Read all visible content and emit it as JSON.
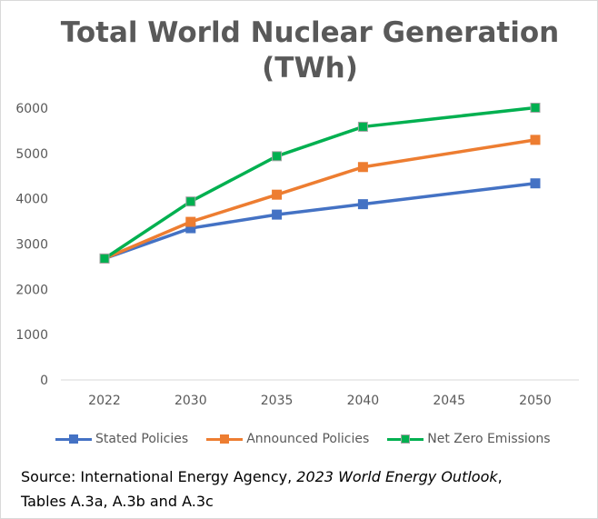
{
  "chart_data": {
    "type": "line",
    "title": "Total World Nuclear Generation (TWh)",
    "title_lines": [
      "Total World Nuclear Generation",
      "(TWh)"
    ],
    "categories": [
      "2022",
      "2030",
      "2035",
      "2040",
      "2045",
      "2050"
    ],
    "ylim": [
      0,
      6000
    ],
    "yticks": [
      0,
      1000,
      2000,
      3000,
      4000,
      5000,
      6000
    ],
    "grid": false,
    "legend": "bottom",
    "series": [
      {
        "name": "Stated Policies",
        "color": "#4472C4",
        "values": [
          2680,
          3350,
          3650,
          3880,
          null,
          4340
        ]
      },
      {
        "name": "Announced Policies",
        "color": "#ED7D31",
        "values": [
          2680,
          3490,
          4090,
          4700,
          null,
          5300
        ]
      },
      {
        "name": "Net Zero Emissions",
        "color": "#00B050",
        "values": [
          2680,
          3940,
          4940,
          5590,
          null,
          6010
        ]
      }
    ]
  },
  "source": {
    "prefix": "Source:  International Energy Agency, ",
    "italic": "2023 World Energy Outlook",
    "suffix": ",",
    "line2": "Tables A.3a, A.3b and A.3c"
  }
}
